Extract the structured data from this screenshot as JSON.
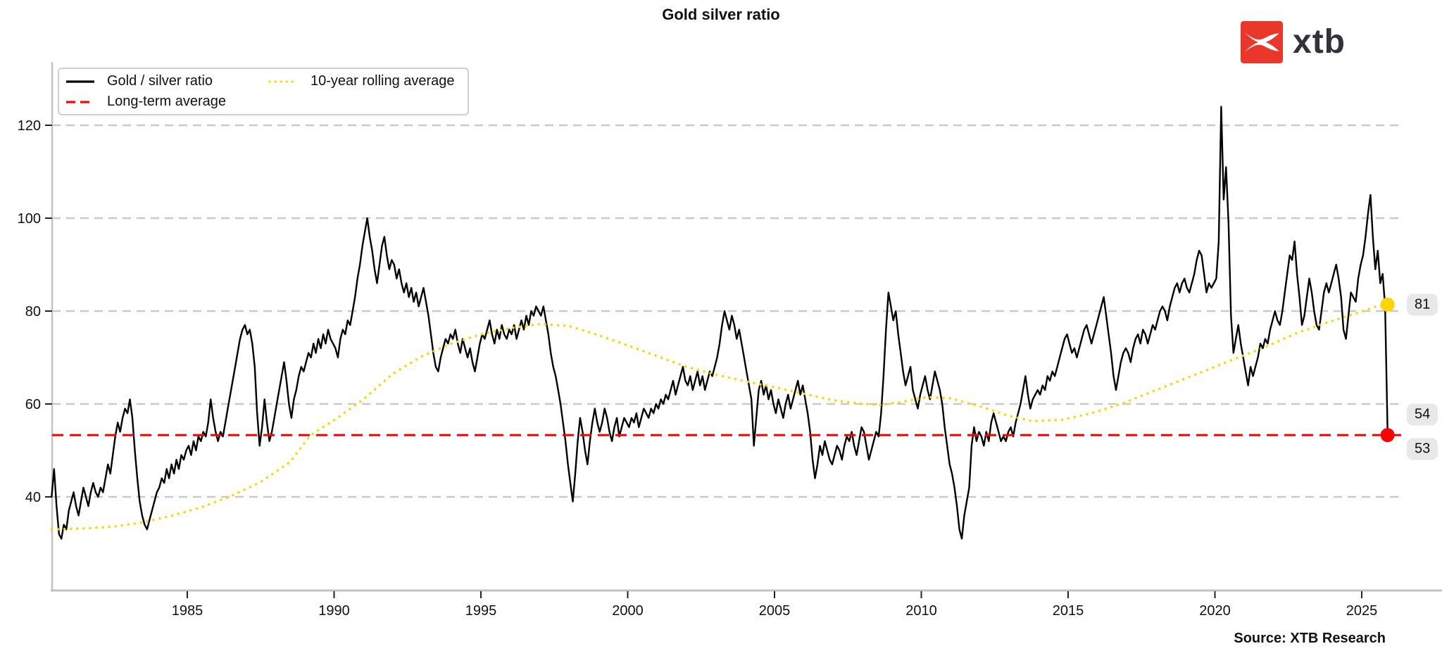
{
  "title": "Gold silver ratio",
  "source": "Source: XTB Research",
  "logo": {
    "word": "xtb",
    "accent_color": "#e9372c",
    "word_color": "#32323a"
  },
  "legend": {
    "items": [
      {
        "label": "Gold / silver ratio",
        "style": "solid",
        "color": "#000000"
      },
      {
        "label": "Long-term average",
        "style": "dashed",
        "color": "#ff0000"
      },
      {
        "label": "10-year rolling average",
        "style": "dotted",
        "color": "#ffd400"
      }
    ]
  },
  "chart_data": {
    "type": "line",
    "title": "Gold silver ratio",
    "xlabel": "",
    "ylabel": "",
    "grid": true,
    "x_axis": {
      "ticks": [
        1985,
        1990,
        1995,
        2000,
        2005,
        2010,
        2015,
        2020,
        2025
      ],
      "range": [
        1980.2,
        2026.9
      ]
    },
    "y_axis": {
      "ticks": [
        40,
        60,
        80,
        100,
        120
      ],
      "range": [
        20,
        133.5
      ]
    },
    "colors": {
      "grid": "#c9c9c9",
      "spine": "#c2c2c2",
      "tick": "#222222"
    },
    "series": [
      {
        "name": "Gold / silver ratio",
        "style": "solid",
        "color": "#000000",
        "start_year": 1980.38,
        "step_years": 0.0833333,
        "values": [
          40,
          46,
          38,
          32,
          31,
          34,
          33,
          37,
          39,
          41,
          38,
          36,
          39,
          42,
          40,
          38,
          41,
          43,
          41,
          40,
          42,
          41,
          44,
          47,
          45,
          49,
          53,
          56,
          54,
          57,
          59,
          58,
          61,
          57,
          50,
          44,
          39,
          36,
          34,
          33,
          35,
          37,
          39,
          41,
          42,
          44,
          43,
          46,
          44,
          47,
          45,
          48,
          46,
          49,
          48,
          50,
          51,
          49,
          52,
          50,
          53,
          52,
          54,
          53,
          56,
          61,
          57,
          54,
          52,
          54,
          53,
          56,
          59,
          62,
          65,
          68,
          71,
          74,
          76,
          77,
          75,
          76,
          73,
          68,
          58,
          51,
          55,
          61,
          56,
          52,
          54,
          57,
          60,
          63,
          66,
          69,
          65,
          60,
          57,
          61,
          63,
          66,
          68,
          67,
          69,
          71,
          70,
          73,
          71,
          74,
          72,
          75,
          73,
          76,
          74,
          73,
          72,
          70,
          74,
          76,
          75,
          78,
          77,
          80,
          83,
          87,
          90,
          94,
          97,
          100,
          96,
          93,
          89,
          86,
          90,
          94,
          96,
          92,
          89,
          91,
          90,
          87,
          89,
          86,
          84,
          86,
          83,
          85,
          82,
          84,
          81,
          83,
          85,
          82,
          79,
          75,
          71,
          68,
          67,
          70,
          72,
          74,
          73,
          75,
          74,
          76,
          73,
          71,
          74,
          72,
          70,
          72,
          69,
          67,
          70,
          73,
          75,
          74,
          76,
          78,
          75,
          73,
          76,
          74,
          77,
          75,
          74,
          76,
          75,
          77,
          74,
          76,
          78,
          76,
          79,
          77,
          80,
          79,
          81,
          80,
          79,
          81,
          78,
          75,
          71,
          68,
          66,
          63,
          60,
          56,
          52,
          47,
          43,
          39,
          45,
          52,
          57,
          54,
          50,
          47,
          52,
          56,
          59,
          56,
          54,
          56,
          59,
          57,
          54,
          52,
          55,
          57,
          53,
          55,
          57,
          56,
          55,
          57,
          56,
          58,
          55,
          57,
          59,
          58,
          57,
          59,
          58,
          60,
          59,
          61,
          60,
          62,
          61,
          63,
          65,
          62,
          64,
          66,
          68,
          65,
          64,
          66,
          63,
          65,
          67,
          64,
          66,
          63,
          65,
          67,
          66,
          68,
          70,
          73,
          77,
          80,
          78,
          76,
          79,
          77,
          74,
          76,
          73,
          70,
          67,
          64,
          61,
          51,
          57,
          63,
          65,
          62,
          64,
          61,
          63,
          60,
          58,
          61,
          59,
          57,
          60,
          62,
          59,
          61,
          63,
          65,
          62,
          64,
          61,
          58,
          54,
          48,
          44,
          47,
          51,
          49,
          52,
          50,
          48,
          47,
          49,
          51,
          50,
          48,
          51,
          53,
          52,
          54,
          51,
          49,
          52,
          55,
          54,
          51,
          48,
          50,
          52,
          54,
          53,
          58,
          66,
          76,
          84,
          81,
          78,
          80,
          75,
          71,
          67,
          64,
          66,
          68,
          63,
          61,
          59,
          62,
          64,
          66,
          63,
          61,
          64,
          67,
          65,
          63,
          60,
          55,
          51,
          47,
          45,
          42,
          38,
          33,
          31,
          36,
          39,
          42,
          51,
          55,
          52,
          54,
          53,
          51,
          54,
          52,
          56,
          58,
          56,
          54,
          52,
          53,
          52,
          54,
          55,
          53,
          56,
          58,
          60,
          63,
          66,
          62,
          59,
          61,
          62,
          63,
          62,
          64,
          63,
          66,
          65,
          67,
          66,
          68,
          70,
          72,
          74,
          75,
          73,
          71,
          72,
          70,
          72,
          74,
          76,
          77,
          75,
          73,
          75,
          77,
          79,
          81,
          83,
          79,
          75,
          71,
          66,
          63,
          66,
          69,
          71,
          72,
          71,
          69,
          72,
          74,
          75,
          73,
          76,
          75,
          73,
          75,
          77,
          76,
          78,
          80,
          81,
          80,
          78,
          81,
          83,
          85,
          86,
          84,
          86,
          87,
          85,
          84,
          86,
          88,
          91,
          93,
          92,
          88,
          84,
          86,
          85,
          86,
          87,
          95,
          124,
          104,
          111,
          99,
          79,
          71,
          74,
          77,
          73,
          70,
          67,
          64,
          68,
          66,
          68,
          70,
          73,
          72,
          74,
          73,
          76,
          78,
          80,
          78,
          77,
          80,
          84,
          88,
          92,
          91,
          95,
          88,
          83,
          77,
          79,
          83,
          87,
          84,
          80,
          77,
          76,
          80,
          84,
          86,
          84,
          86,
          88,
          90,
          87,
          83,
          76,
          74,
          79,
          84,
          83,
          82,
          87,
          90,
          92,
          96,
          101,
          105,
          96,
          89,
          93,
          86,
          88,
          81,
          54
        ]
      },
      {
        "name": "10-year rolling average",
        "style": "dotted",
        "color": "#ffd400",
        "end_dot": true,
        "points": [
          [
            1980.38,
            33
          ],
          [
            1981.5,
            33.2
          ],
          [
            1982.5,
            33.6
          ],
          [
            1983.5,
            34.5
          ],
          [
            1984.5,
            36
          ],
          [
            1985.5,
            37.8
          ],
          [
            1986.5,
            40.2
          ],
          [
            1987.5,
            43.2
          ],
          [
            1988.5,
            47.5
          ],
          [
            1989.2,
            53.3
          ],
          [
            1990,
            56.5
          ],
          [
            1991,
            61
          ],
          [
            1992,
            66.5
          ],
          [
            1993,
            70.3
          ],
          [
            1994,
            73
          ],
          [
            1995,
            75
          ],
          [
            1996,
            76.3
          ],
          [
            1997,
            77.2
          ],
          [
            1998,
            76.8
          ],
          [
            1999,
            74.8
          ],
          [
            2000,
            72.6
          ],
          [
            2001,
            70.3
          ],
          [
            2002,
            68
          ],
          [
            2003,
            66.3
          ],
          [
            2004,
            64.9
          ],
          [
            2005,
            63.6
          ],
          [
            2006,
            62.2
          ],
          [
            2007,
            60.8
          ],
          [
            2008,
            60
          ],
          [
            2008.6,
            59.8
          ],
          [
            2009.3,
            60.4
          ],
          [
            2010.2,
            61.5
          ],
          [
            2011,
            61.2
          ],
          [
            2012,
            59.5
          ],
          [
            2013,
            57.4
          ],
          [
            2013.8,
            56.3
          ],
          [
            2014.8,
            56.6
          ],
          [
            2015.8,
            58
          ],
          [
            2016.8,
            60
          ],
          [
            2017.8,
            62.5
          ],
          [
            2018.8,
            65
          ],
          [
            2019.8,
            67.5
          ],
          [
            2020.8,
            70
          ],
          [
            2021.8,
            72.5
          ],
          [
            2022.8,
            75.3
          ],
          [
            2023.8,
            77.5
          ],
          [
            2024.8,
            79.5
          ],
          [
            2025.5,
            81
          ],
          [
            2025.88,
            81.4
          ]
        ]
      },
      {
        "name": "Long-term average",
        "style": "dashed",
        "color": "#ff0000",
        "value": 53.3,
        "end_dot": true,
        "end_dot_x": 2025.88
      }
    ],
    "annotations": [
      {
        "label": "81",
        "value": 81.4,
        "dy": 0
      },
      {
        "label": "54",
        "value": 54,
        "dy": -25
      },
      {
        "label": "53",
        "value": 53.3,
        "dy": 20
      }
    ],
    "legend_position": "upper left"
  }
}
